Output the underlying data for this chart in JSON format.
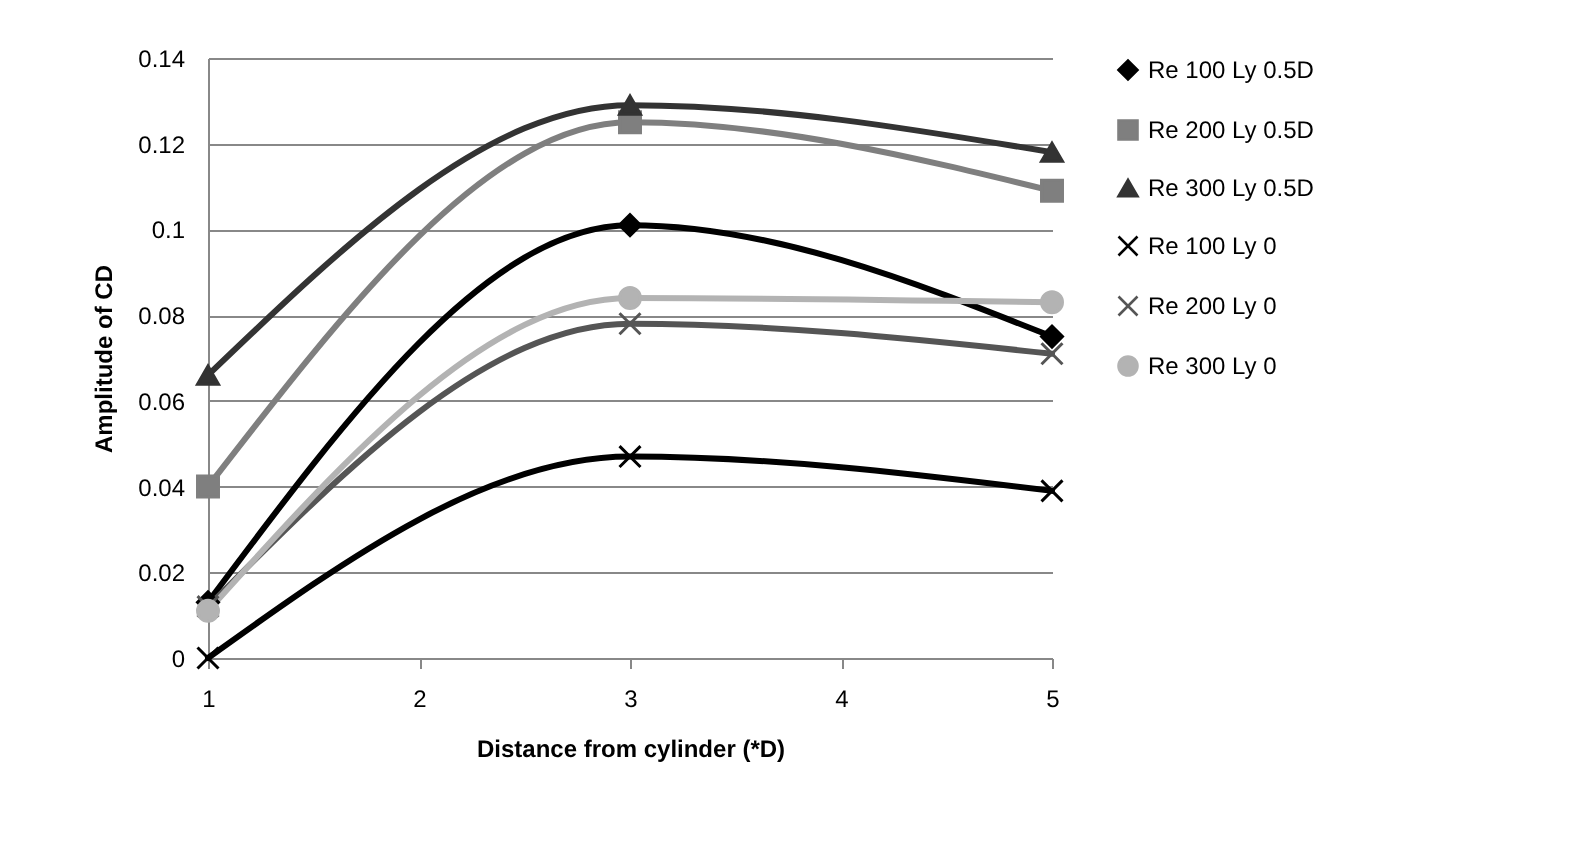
{
  "chart_data": {
    "type": "line",
    "xlabel": "Distance from cylinder (*D)",
    "ylabel": "Amplitude of CD",
    "x": [
      1,
      3,
      5
    ],
    "xlim": [
      1,
      5
    ],
    "xticks": [
      1,
      2,
      3,
      4,
      5
    ],
    "ylim": [
      0,
      0.14
    ],
    "yticks": [
      0,
      0.02,
      0.04,
      0.06,
      0.08,
      0.1,
      0.12,
      0.14
    ],
    "grid": "y",
    "legend": "right",
    "series": [
      {
        "name": "Re 100 Ly 0.5D",
        "color": "#000000",
        "marker": "diamond",
        "values": [
          0.013,
          0.101,
          0.075
        ]
      },
      {
        "name": "Re 200 Ly 0.5D",
        "color": "#7f7f7f",
        "marker": "square",
        "values": [
          0.04,
          0.125,
          0.109
        ]
      },
      {
        "name": "Re 300 Ly 0.5D",
        "color": "#333333",
        "marker": "triangle",
        "values": [
          0.066,
          0.129,
          0.118
        ]
      },
      {
        "name": "Re 100 Ly 0",
        "color": "#000000",
        "marker": "cross",
        "values": [
          0,
          0.047,
          0.039
        ]
      },
      {
        "name": "Re 200 Ly 0",
        "color": "#555555",
        "marker": "cross",
        "values": [
          0.012,
          0.078,
          0.071
        ]
      },
      {
        "name": "Re 300 Ly 0",
        "color": "#b3b3b3",
        "marker": "circle",
        "values": [
          0.011,
          0.084,
          0.083
        ]
      }
    ]
  }
}
